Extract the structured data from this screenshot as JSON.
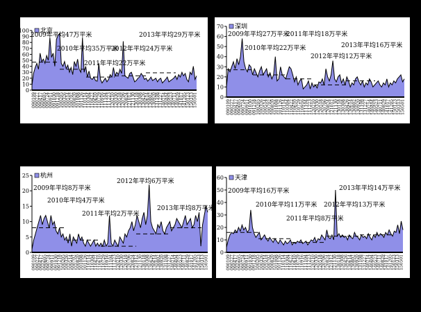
{
  "chart_data": [
    {
      "type": "area",
      "legend": "北京",
      "ylim": [
        0,
        100
      ],
      "yticks": [
        0,
        10,
        20,
        30,
        40,
        50,
        60,
        70,
        80,
        90,
        100
      ],
      "xticks": [
        "090109",
        "090227",
        "090417",
        "090605",
        "090724",
        "090911",
        "091030",
        "091218",
        "100205",
        "100326",
        "100514",
        "100702",
        "100820",
        "101008",
        "101126",
        "110114",
        "110304",
        "110422",
        "110610",
        "110729",
        "110916",
        "111104",
        "111223",
        "120210",
        "120330",
        "120518",
        "120706",
        "120824",
        "121012",
        "121130",
        "130118",
        "130308",
        "130426",
        "130614",
        "130802",
        "130920",
        "131108",
        "131227",
        "140214",
        "140404",
        "140523",
        "140711",
        "140829",
        "141017",
        "141205",
        "150123",
        "150313",
        "150501"
      ],
      "annotations": [
        "2009年平均47万平米",
        "2010年平均35万平米",
        "2011年平均22万平米",
        "2012年平均24万平米",
        "2013年平均29万平米"
      ],
      "annual_averages": [
        47,
        35,
        22,
        24,
        29
      ],
      "values": [
        8,
        28,
        38,
        45,
        35,
        62,
        48,
        52,
        45,
        58,
        50,
        88,
        55,
        62,
        40,
        85,
        92,
        95,
        45,
        40,
        48,
        36,
        42,
        30,
        38,
        26,
        48,
        40,
        52,
        35,
        30,
        88,
        30,
        40,
        22,
        32,
        20,
        18,
        22,
        16,
        15,
        45,
        18,
        12,
        16,
        20,
        14,
        18,
        26,
        22,
        38,
        24,
        30,
        26,
        35,
        28,
        82,
        24,
        22,
        20,
        28,
        30,
        22,
        14,
        16,
        20,
        22,
        28,
        24,
        18,
        20,
        15,
        18,
        22,
        16,
        18,
        20,
        14,
        18,
        20,
        12,
        15,
        18,
        22,
        14,
        16,
        18,
        20,
        24,
        18,
        26,
        22,
        30,
        24,
        28,
        18,
        14,
        30,
        26,
        40,
        18,
        24
      ]
    },
    {
      "type": "area",
      "legend": "深圳",
      "ylim": [
        0,
        70
      ],
      "yticks": [
        0,
        10,
        20,
        30,
        40,
        50,
        60,
        70
      ],
      "xticks": [
        "090109",
        "090227",
        "090417",
        "090605",
        "090724",
        "090911",
        "091030",
        "091218",
        "100205",
        "100326",
        "100514",
        "100702",
        "100820",
        "101008",
        "101126",
        "110114",
        "110304",
        "110422",
        "110610",
        "110729",
        "110916",
        "111104",
        "111223",
        "120210",
        "120330",
        "120518",
        "120706",
        "120824",
        "121012",
        "121130",
        "130118",
        "130308",
        "130426",
        "130614",
        "130802",
        "130920",
        "131108",
        "131227",
        "140214",
        "140404",
        "140523",
        "140711",
        "140829",
        "141017",
        "141205",
        "150123",
        "150313",
        "150501"
      ],
      "annotations": [
        "2009年平均27万平米",
        "2010年平均22万平米",
        "2011年平均18万平米",
        "2012年平均12万平米",
        "2013年平均16万平米"
      ],
      "annual_averages": [
        27,
        22,
        18,
        12,
        16
      ],
      "values": [
        10,
        28,
        25,
        30,
        35,
        28,
        38,
        32,
        40,
        58,
        35,
        28,
        25,
        32,
        30,
        22,
        28,
        24,
        20,
        26,
        30,
        22,
        25,
        28,
        20,
        24,
        18,
        22,
        40,
        16,
        18,
        30,
        22,
        20,
        18,
        24,
        30,
        28,
        22,
        15,
        20,
        12,
        16,
        18,
        8,
        10,
        12,
        16,
        8,
        14,
        10,
        12,
        9,
        15,
        14,
        18,
        12,
        28,
        20,
        16,
        22,
        36,
        18,
        15,
        20,
        22,
        14,
        18,
        12,
        20,
        16,
        10,
        14,
        12,
        18,
        20,
        15,
        12,
        16,
        10,
        14,
        12,
        18,
        15,
        10,
        12,
        14,
        16,
        12,
        10,
        14,
        12,
        18,
        10,
        14,
        12,
        16,
        14,
        18,
        20,
        22,
        15,
        18
      ]
    },
    {
      "type": "area",
      "legend": "杭州",
      "ylim": [
        0,
        25
      ],
      "yticks": [
        0,
        5,
        10,
        15,
        20,
        25
      ],
      "xticks": [
        "090109",
        "090227",
        "090417",
        "090605",
        "090724",
        "090911",
        "091030",
        "091218",
        "100205",
        "100326",
        "100514",
        "100702",
        "100820",
        "101008",
        "101126",
        "110114",
        "110304",
        "110422",
        "110610",
        "110729",
        "110916",
        "111104",
        "111223",
        "120210",
        "120330",
        "120518",
        "120706",
        "120824",
        "121012",
        "121130",
        "130118",
        "130308",
        "130426",
        "130614",
        "130802",
        "130920",
        "131108",
        "131227",
        "140214",
        "140404",
        "140523",
        "140711",
        "140829",
        "141017",
        "141205",
        "150123",
        "150313",
        "150501"
      ],
      "annotations": [
        "2009年平均8万平米",
        "2010年平均4万平米",
        "2011年平均2万平米",
        "2012年平均6万平米",
        "2013年平均8万平米"
      ],
      "annual_averages": [
        8,
        4,
        2,
        6,
        8
      ],
      "values": [
        1,
        4,
        6,
        8,
        10,
        12,
        9,
        11,
        12,
        10,
        8,
        12,
        9,
        10,
        7,
        6,
        8,
        5,
        6,
        4,
        5,
        3,
        6,
        2,
        5,
        4,
        3,
        6,
        4,
        5,
        3,
        2,
        4,
        3,
        2,
        3,
        4,
        2,
        3,
        2,
        3,
        2,
        4,
        2,
        3,
        12,
        3,
        2,
        4,
        3,
        2,
        5,
        4,
        3,
        6,
        5,
        7,
        8,
        10,
        7,
        9,
        12,
        10,
        8,
        11,
        13,
        9,
        12,
        22,
        10,
        8,
        7,
        6,
        9,
        8,
        10,
        7,
        6,
        8,
        9,
        10,
        7,
        8,
        9,
        11,
        10,
        9,
        8,
        10,
        12,
        9,
        10,
        11,
        8,
        9,
        12,
        10,
        13,
        2,
        9,
        12,
        15,
        13
      ]
    },
    {
      "type": "area",
      "legend": "天津",
      "ylim": [
        0,
        60
      ],
      "yticks": [
        0,
        10,
        20,
        30,
        40,
        50,
        60
      ],
      "xticks": [
        "090109",
        "090227",
        "090417",
        "090605",
        "090724",
        "090911",
        "091030",
        "091218",
        "100205",
        "100326",
        "100514",
        "100702",
        "100820",
        "101008",
        "101126",
        "110114",
        "110304",
        "110422",
        "110610",
        "110729",
        "110916",
        "111104",
        "111223",
        "120210",
        "120330",
        "120518",
        "120706",
        "120824",
        "121012",
        "121130",
        "130118",
        "130308",
        "130426",
        "130614",
        "130802",
        "130920",
        "131108",
        "131227",
        "140214",
        "140404",
        "140523",
        "140711",
        "140829",
        "141017",
        "141205",
        "150123",
        "150313",
        "150501"
      ],
      "annotations": [
        "2009年平均16万平米",
        "2010年平均11万平米",
        "2011年平均8万平米",
        "2012年平均13万平米",
        "2013年平均14万平米"
      ],
      "annual_averages": [
        16,
        11,
        8,
        13,
        14
      ],
      "values": [
        4,
        10,
        14,
        16,
        15,
        18,
        16,
        20,
        17,
        22,
        18,
        20,
        16,
        18,
        34,
        20,
        15,
        12,
        14,
        16,
        10,
        12,
        14,
        11,
        9,
        12,
        10,
        8,
        11,
        9,
        7,
        10,
        8,
        6,
        9,
        7,
        8,
        10,
        6,
        8,
        7,
        9,
        8,
        10,
        7,
        8,
        9,
        6,
        8,
        10,
        9,
        12,
        8,
        11,
        10,
        14,
        12,
        10,
        18,
        12,
        11,
        14,
        10,
        50,
        13,
        15,
        12,
        14,
        12,
        13,
        10,
        14,
        12,
        11,
        16,
        13,
        12,
        10,
        14,
        12,
        13,
        11,
        15,
        12,
        10,
        14,
        12,
        16,
        13,
        15,
        14,
        12,
        16,
        14,
        18,
        15,
        13,
        17,
        16,
        22,
        15,
        25,
        18
      ]
    }
  ]
}
